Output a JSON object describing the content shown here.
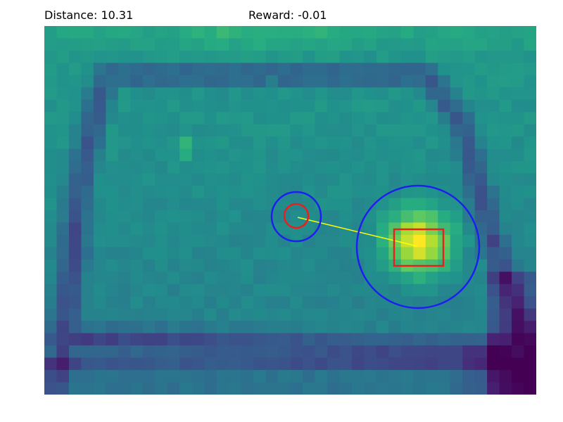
{
  "hud": {
    "distance_text": "Distance: 10.31",
    "reward_text": "Reward: -0.01"
  },
  "colors": {
    "agent_marker": "#e8201a",
    "agent_range": "#1e1ef0",
    "target_marker": "#e8201a",
    "target_range": "#1e1ef0",
    "link_line": "#ffff00",
    "heat_low": "#440154",
    "heat_mid": "#21918c",
    "heat_high": "#fde725"
  },
  "entities": {
    "agent_icon": "agent-circle-icon",
    "target_icon": "target-square-icon"
  }
}
